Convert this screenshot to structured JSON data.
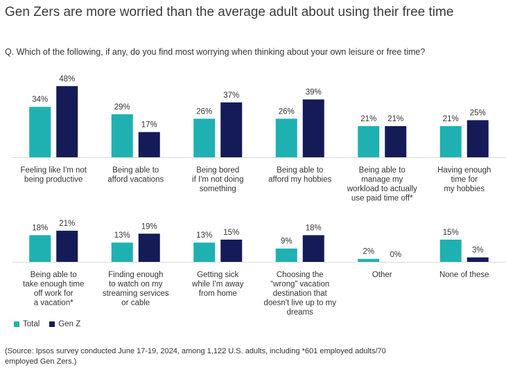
{
  "title": "Gen Zers are more worried than the average adult about using their free time",
  "subtitle": "Q. Which of the following, if any, do you find most worrying when thinking about your own leisure or free time?",
  "source": "(Source: Ipsos survey conducted June 17-19, 2024, among 1,122 U.S. adults, including *601 employed adults/70 employed Gen Zers.)",
  "legend": [
    {
      "name": "Total",
      "color": "#1fb1b1"
    },
    {
      "name": "Gen Z",
      "color": "#141b57"
    }
  ],
  "chart_data": {
    "type": "bar",
    "title": "Gen Zers are more worried than the average adult about using their free time",
    "value_format": "percent",
    "categories": [
      [
        "Feeling like I'm not",
        "being productive"
      ],
      [
        "Being able to",
        "afford vacations"
      ],
      [
        "Being bored",
        "if I'm not doing",
        "something"
      ],
      [
        "Being able to",
        "afford my hobbies"
      ],
      [
        "Being able to",
        "manage my",
        "workload to actually",
        "use paid time off*"
      ],
      [
        "Having enough",
        "time for",
        "my hobbies"
      ],
      [
        "Being able to",
        "take enough time",
        "off work for",
        "a vacation*"
      ],
      [
        "Finding enough",
        "to watch on my",
        "streaming services",
        "or cable"
      ],
      [
        "Getting sick",
        "while I'm away",
        "from home"
      ],
      [
        "Choosing the",
        "“wrong” vacation",
        "destination that",
        "doesn't live up to my",
        "dreams"
      ],
      [
        "Other"
      ],
      [
        "None of these"
      ]
    ],
    "series": [
      {
        "name": "Total",
        "color": "#1fb1b1",
        "values": [
          34,
          29,
          26,
          26,
          21,
          21,
          18,
          13,
          13,
          9,
          2,
          15
        ]
      },
      {
        "name": "Gen Z",
        "color": "#141b57",
        "values": [
          48,
          17,
          37,
          39,
          21,
          25,
          21,
          19,
          15,
          18,
          0,
          3
        ]
      }
    ],
    "ylim": [
      0,
      50
    ],
    "grid": false,
    "legend_position": "bottom-left"
  }
}
